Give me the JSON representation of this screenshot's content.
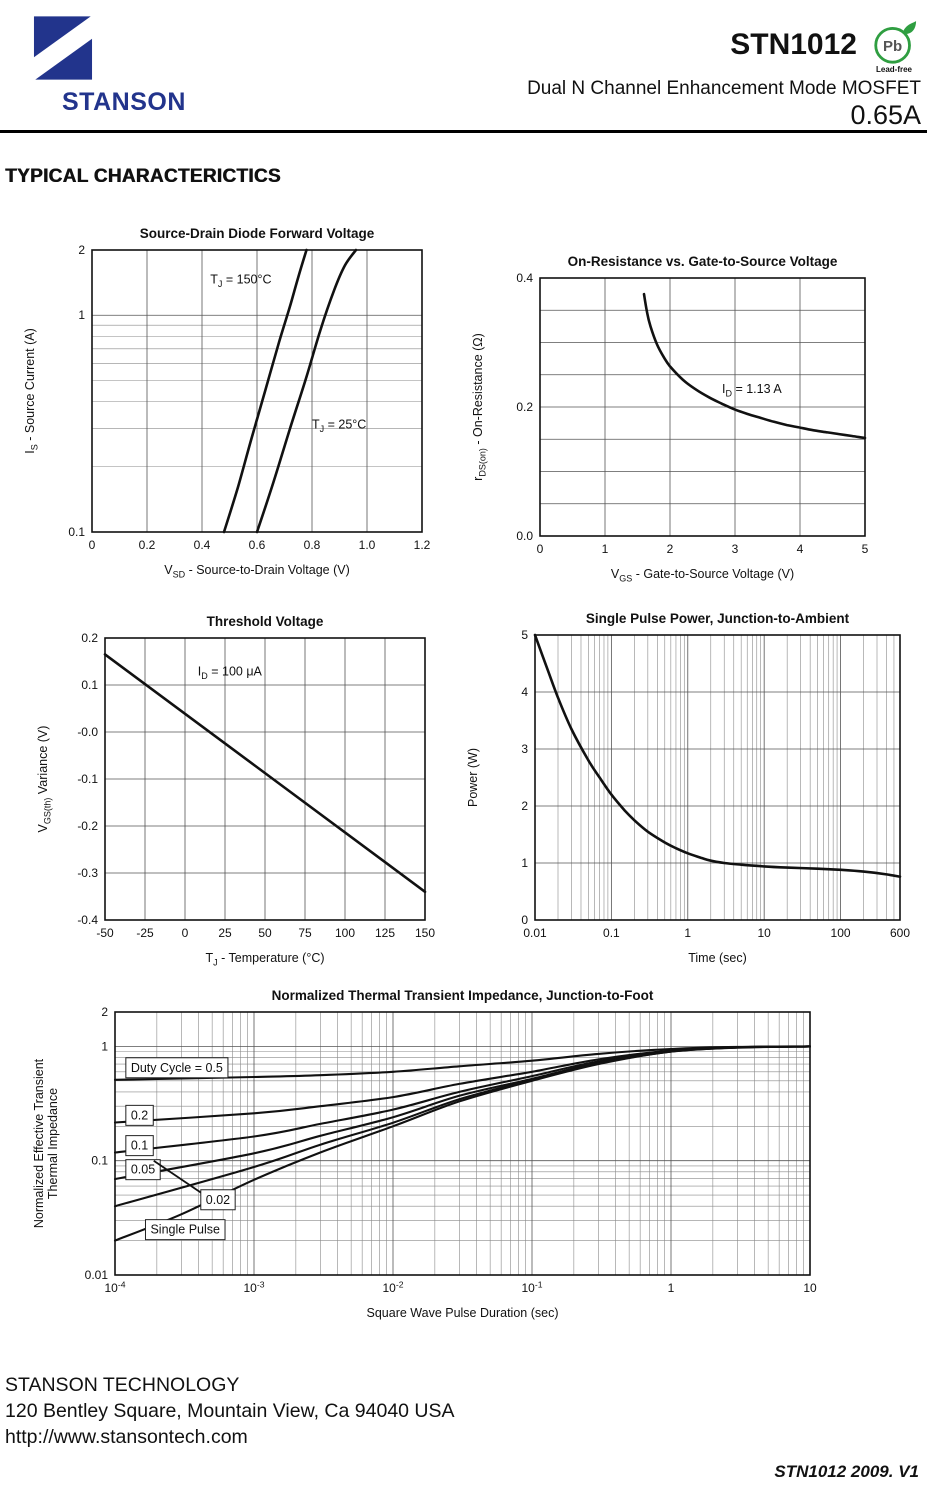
{
  "header": {
    "brand": "STANSON",
    "part": "STN1012",
    "subtitle": "Dual N Channel Enhancement Mode MOSFET",
    "rating": "0.65A",
    "pb_label": "Pb",
    "pb_caption": "Lead-free",
    "brand_color": "#22348c",
    "leadfree_color": "#2f9e41"
  },
  "section_title": "TYPICAL CHARACTERICTICS",
  "footer": {
    "company": "STANSON TECHNOLOGY",
    "address": "120 Bentley Square, Mountain View, Ca 94040 USA",
    "website": "http://www.stansontech.com",
    "revision": "STN1012  2009. V1"
  },
  "chart_data": [
    {
      "id": "source-drain-diode-forward-voltage",
      "type": "line",
      "title": "Source-Drain Diode Forward Voltage",
      "xlabel": "V~SD~  -  Source-to-Drain Voltage (V)",
      "ylabel": "I~S~  -  Source Current (A)",
      "x_scale": "linear",
      "y_scale": "log",
      "xlim": [
        0,
        1.2
      ],
      "ylim": [
        0.1,
        2
      ],
      "x_grid_step": 0.2,
      "x_ticks": [
        {
          "v": 0,
          "label": "0"
        },
        {
          "v": 0.2,
          "label": "0.2"
        },
        {
          "v": 0.4,
          "label": "0.4"
        },
        {
          "v": 0.6,
          "label": "0.6"
        },
        {
          "v": 0.8,
          "label": "0.8"
        },
        {
          "v": 1.0,
          "label": "1.0"
        },
        {
          "v": 1.2,
          "label": "1.2"
        }
      ],
      "y_ticks": [
        {
          "v": 2,
          "label": "2"
        },
        {
          "v": 1,
          "label": "1"
        },
        {
          "v": 0.1,
          "label": "0.1"
        }
      ],
      "series": [
        {
          "name": "TJ = 150°C",
          "points": [
            [
              0.48,
              0.1
            ],
            [
              0.53,
              0.16
            ],
            [
              0.58,
              0.27
            ],
            [
              0.63,
              0.45
            ],
            [
              0.68,
              0.75
            ],
            [
              0.72,
              1.1
            ],
            [
              0.75,
              1.5
            ],
            [
              0.78,
              2.0
            ]
          ]
        },
        {
          "name": "TJ = 25°C",
          "points": [
            [
              0.6,
              0.1
            ],
            [
              0.66,
              0.17
            ],
            [
              0.72,
              0.3
            ],
            [
              0.78,
              0.52
            ],
            [
              0.83,
              0.85
            ],
            [
              0.88,
              1.3
            ],
            [
              0.92,
              1.7
            ],
            [
              0.96,
              2.0
            ]
          ]
        }
      ],
      "annotations": [
        {
          "text": "T~J~ = 150°C",
          "x": 0.43,
          "y": 1.4,
          "anchor": "start"
        },
        {
          "text": "T~J~ = 25°C",
          "x": 0.8,
          "y": 0.3,
          "anchor": "start"
        }
      ]
    },
    {
      "id": "on-resistance-vs-gate-to-source-voltage",
      "type": "line",
      "title": "On-Resistance vs. Gate-to-Source Voltage",
      "xlabel": "V~GS~ - Gate-to-Source Voltage (V)",
      "ylabel": "r~DS(on)~  -  On-Resistance (Ω)",
      "x_scale": "linear",
      "y_scale": "linear",
      "xlim": [
        0,
        5
      ],
      "ylim": [
        0,
        0.4
      ],
      "x_grid_step": 1,
      "y_grid_step": 0.05,
      "x_ticks": [
        {
          "v": 0,
          "label": "0"
        },
        {
          "v": 1,
          "label": "1"
        },
        {
          "v": 2,
          "label": "2"
        },
        {
          "v": 3,
          "label": "3"
        },
        {
          "v": 4,
          "label": "4"
        },
        {
          "v": 5,
          "label": "5"
        }
      ],
      "y_ticks": [
        {
          "v": 0,
          "label": "0.0"
        },
        {
          "v": 0.2,
          "label": "0.2"
        },
        {
          "v": 0.4,
          "label": "0.4"
        }
      ],
      "series": [
        {
          "name": "ID = 1.13 A",
          "points": [
            [
              1.6,
              0.375
            ],
            [
              1.65,
              0.345
            ],
            [
              1.7,
              0.325
            ],
            [
              1.8,
              0.297
            ],
            [
              1.9,
              0.278
            ],
            [
              2.0,
              0.263
            ],
            [
              2.2,
              0.242
            ],
            [
              2.4,
              0.227
            ],
            [
              2.6,
              0.215
            ],
            [
              2.8,
              0.205
            ],
            [
              3.0,
              0.196
            ],
            [
              3.2,
              0.189
            ],
            [
              3.4,
              0.183
            ],
            [
              3.6,
              0.177
            ],
            [
              3.8,
              0.172
            ],
            [
              4.0,
              0.168
            ],
            [
              4.2,
              0.164
            ],
            [
              4.4,
              0.161
            ],
            [
              4.6,
              0.158
            ],
            [
              4.8,
              0.155
            ],
            [
              5.0,
              0.152
            ]
          ]
        }
      ],
      "annotations": [
        {
          "text": "I~D~ = 1.13 A",
          "x": 2.8,
          "y": 0.222,
          "anchor": "start"
        }
      ]
    },
    {
      "id": "threshold-voltage",
      "type": "line",
      "title": "Threshold Voltage",
      "xlabel": "T~J~  -  Temperature (°C)",
      "ylabel": "V~GS(th)~  Variance (V)",
      "x_scale": "linear",
      "y_scale": "linear",
      "xlim": [
        -50,
        150
      ],
      "ylim": [
        -0.4,
        0.2
      ],
      "x_grid_step": 25,
      "y_grid_step": 0.1,
      "x_ticks": [
        {
          "v": -50,
          "label": "-50"
        },
        {
          "v": -25,
          "label": "-25"
        },
        {
          "v": 0,
          "label": "0"
        },
        {
          "v": 25,
          "label": "25"
        },
        {
          "v": 50,
          "label": "50"
        },
        {
          "v": 75,
          "label": "75"
        },
        {
          "v": 100,
          "label": "100"
        },
        {
          "v": 125,
          "label": "125"
        },
        {
          "v": 150,
          "label": "150"
        }
      ],
      "y_ticks": [
        {
          "v": 0.2,
          "label": "0.2"
        },
        {
          "v": 0.1,
          "label": "0.1"
        },
        {
          "v": 0,
          "label": "-0.0"
        },
        {
          "v": -0.1,
          "label": "-0.1"
        },
        {
          "v": -0.2,
          "label": "-0.2"
        },
        {
          "v": -0.3,
          "label": "-0.3"
        },
        {
          "v": -0.4,
          "label": "-0.4"
        }
      ],
      "series": [
        {
          "name": "ID = 100 uA",
          "points": [
            [
              -50,
              0.165
            ],
            [
              150,
              -0.34
            ]
          ]
        }
      ],
      "annotations": [
        {
          "text": "I~D~ = 100 μA",
          "x": 8,
          "y": 0.12,
          "anchor": "start"
        }
      ]
    },
    {
      "id": "single-pulse-power-junction-to-ambient",
      "type": "line",
      "title": "Single Pulse Power, Junction-to-Ambient",
      "xlabel": "Time (sec)",
      "ylabel": "Power  (W)",
      "x_scale": "log",
      "y_scale": "linear",
      "xlim": [
        0.01,
        600
      ],
      "ylim": [
        0,
        5
      ],
      "y_grid_step": 1,
      "x_ticks": [
        {
          "v": 0.01,
          "label": "0.01"
        },
        {
          "v": 0.1,
          "label": "0.1"
        },
        {
          "v": 1,
          "label": "1"
        },
        {
          "v": 10,
          "label": "10"
        },
        {
          "v": 100,
          "label": "100"
        },
        {
          "v": 600,
          "label": "600"
        }
      ],
      "y_ticks": [
        {
          "v": 0,
          "label": "0"
        },
        {
          "v": 1,
          "label": "1"
        },
        {
          "v": 2,
          "label": "2"
        },
        {
          "v": 3,
          "label": "3"
        },
        {
          "v": 4,
          "label": "4"
        },
        {
          "v": 5,
          "label": "5"
        }
      ],
      "series": [
        {
          "name": "Single Pulse Power",
          "points": [
            [
              0.01,
              5.0
            ],
            [
              0.015,
              4.35
            ],
            [
              0.02,
              3.9
            ],
            [
              0.03,
              3.35
            ],
            [
              0.05,
              2.8
            ],
            [
              0.07,
              2.5
            ],
            [
              0.1,
              2.2
            ],
            [
              0.15,
              1.92
            ],
            [
              0.2,
              1.75
            ],
            [
              0.3,
              1.55
            ],
            [
              0.5,
              1.36
            ],
            [
              0.7,
              1.26
            ],
            [
              1,
              1.17
            ],
            [
              1.5,
              1.09
            ],
            [
              2,
              1.04
            ],
            [
              3,
              1.0
            ],
            [
              5,
              0.97
            ],
            [
              10,
              0.94
            ],
            [
              20,
              0.92
            ],
            [
              50,
              0.9
            ],
            [
              100,
              0.88
            ],
            [
              200,
              0.85
            ],
            [
              400,
              0.8
            ],
            [
              600,
              0.76
            ]
          ]
        }
      ],
      "annotations": []
    },
    {
      "id": "normalized-thermal-transient-impedance-junction-to-foot",
      "type": "line",
      "title": "Normalized Thermal Transient Impedance, Junction-to-Foot",
      "xlabel": "Square Wave Pulse Duration (sec)",
      "ylabel": [
        "Normalized Effective Transient",
        "Thermal Impedance"
      ],
      "x_scale": "log",
      "y_scale": "log",
      "xlim": [
        0.0001,
        10
      ],
      "ylim": [
        0.01,
        2
      ],
      "x_ticks": [
        {
          "v": 0.0001,
          "label": "10^-4^"
        },
        {
          "v": 0.001,
          "label": "10^-3^"
        },
        {
          "v": 0.01,
          "label": "10^-2^"
        },
        {
          "v": 0.1,
          "label": "10^-1^"
        },
        {
          "v": 1,
          "label": "1"
        },
        {
          "v": 10,
          "label": "10"
        }
      ],
      "y_ticks": [
        {
          "v": 2,
          "label": "2"
        },
        {
          "v": 1,
          "label": "1"
        },
        {
          "v": 0.1,
          "label": "0.1"
        },
        {
          "v": 0.01,
          "label": "0.01"
        }
      ],
      "series": [
        {
          "name": "Duty Cycle = 0.5",
          "points": [
            [
              0.0001,
              0.51
            ],
            [
              0.001,
              0.54
            ],
            [
              0.003,
              0.56
            ],
            [
              0.01,
              0.6
            ],
            [
              0.03,
              0.67
            ],
            [
              0.1,
              0.75
            ],
            [
              0.3,
              0.86
            ],
            [
              1,
              0.95
            ],
            [
              3,
              0.99
            ],
            [
              10,
              1.0
            ]
          ]
        },
        {
          "name": "0.2",
          "points": [
            [
              0.0001,
              0.216
            ],
            [
              0.001,
              0.26
            ],
            [
              0.003,
              0.3
            ],
            [
              0.01,
              0.36
            ],
            [
              0.03,
              0.47
            ],
            [
              0.1,
              0.6
            ],
            [
              0.3,
              0.77
            ],
            [
              1,
              0.92
            ],
            [
              3,
              0.98
            ],
            [
              10,
              1.0
            ]
          ]
        },
        {
          "name": "0.1",
          "points": [
            [
              0.0001,
              0.118
            ],
            [
              0.001,
              0.163
            ],
            [
              0.003,
              0.21
            ],
            [
              0.01,
              0.28
            ],
            [
              0.03,
              0.4
            ],
            [
              0.1,
              0.55
            ],
            [
              0.3,
              0.74
            ],
            [
              1,
              0.91
            ],
            [
              3,
              0.98
            ],
            [
              10,
              1.0
            ]
          ]
        },
        {
          "name": "0.05",
          "points": [
            [
              0.0001,
              0.069
            ],
            [
              0.001,
              0.116
            ],
            [
              0.003,
              0.165
            ],
            [
              0.01,
              0.24
            ],
            [
              0.03,
              0.37
            ],
            [
              0.1,
              0.52
            ],
            [
              0.3,
              0.72
            ],
            [
              1,
              0.905
            ],
            [
              3,
              0.98
            ],
            [
              10,
              1.0
            ]
          ]
        },
        {
          "name": "0.02",
          "points": [
            [
              0.0001,
              0.04
            ],
            [
              0.001,
              0.088
            ],
            [
              0.003,
              0.138
            ],
            [
              0.01,
              0.215
            ],
            [
              0.03,
              0.345
            ],
            [
              0.1,
              0.51
            ],
            [
              0.3,
              0.71
            ],
            [
              1,
              0.9
            ],
            [
              3,
              0.98
            ],
            [
              10,
              1.0
            ]
          ]
        },
        {
          "name": "Single Pulse",
          "points": [
            [
              0.0001,
              0.02
            ],
            [
              0.0003,
              0.034
            ],
            [
              0.001,
              0.068
            ],
            [
              0.003,
              0.118
            ],
            [
              0.01,
              0.2
            ],
            [
              0.03,
              0.33
            ],
            [
              0.1,
              0.5
            ],
            [
              0.3,
              0.7
            ],
            [
              1,
              0.9
            ],
            [
              3,
              0.975
            ],
            [
              10,
              1.0
            ]
          ]
        }
      ],
      "annotations": [
        {
          "text": "Duty Cycle = 0.5",
          "x": 0.00013,
          "y": 0.6,
          "anchor": "start",
          "box": true
        },
        {
          "text": "0.2",
          "x": 0.00013,
          "y": 0.23,
          "anchor": "start",
          "box": true
        },
        {
          "text": "0.1",
          "x": 0.00013,
          "y": 0.125,
          "anchor": "start",
          "box": true
        },
        {
          "text": "0.05",
          "x": 0.00013,
          "y": 0.077,
          "anchor": "start",
          "box": true
        },
        {
          "text": "0.02",
          "x": 0.00045,
          "y": 0.042,
          "anchor": "start",
          "box": true,
          "leader": [
            0.00042,
            0.052,
            0.00019,
            0.1
          ]
        },
        {
          "text": "Single Pulse",
          "x": 0.00018,
          "y": 0.023,
          "anchor": "start",
          "box": true
        }
      ]
    }
  ]
}
